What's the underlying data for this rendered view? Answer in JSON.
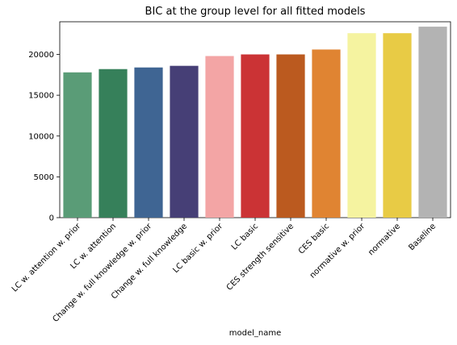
{
  "chart_data": {
    "type": "bar",
    "title": "BIC at the group level for all fitted models",
    "xlabel": "model_name",
    "ylabel": "",
    "ylim": [
      0,
      24000
    ],
    "yticks": [
      0,
      5000,
      10000,
      15000,
      20000
    ],
    "grid": false,
    "categories": [
      "LC w. attention w. prior",
      "LC w. attention",
      "Change w. full knowledge w. prior",
      "Change w. full knowledge",
      "LC basic w. prior",
      "LC basic",
      "CES strength sensitive",
      "CES basic",
      "normative w. prior",
      "normative",
      "Baseline"
    ],
    "values": [
      17800,
      18200,
      18400,
      18600,
      19800,
      20000,
      20000,
      20600,
      22600,
      22600,
      23400
    ],
    "colors": [
      "#5a9c77",
      "#36805a",
      "#3f6593",
      "#463f76",
      "#f3a5a5",
      "#cb3335",
      "#bb5a1f",
      "#e08432",
      "#f5f3a0",
      "#e8cb45",
      "#b3b3b3"
    ]
  }
}
